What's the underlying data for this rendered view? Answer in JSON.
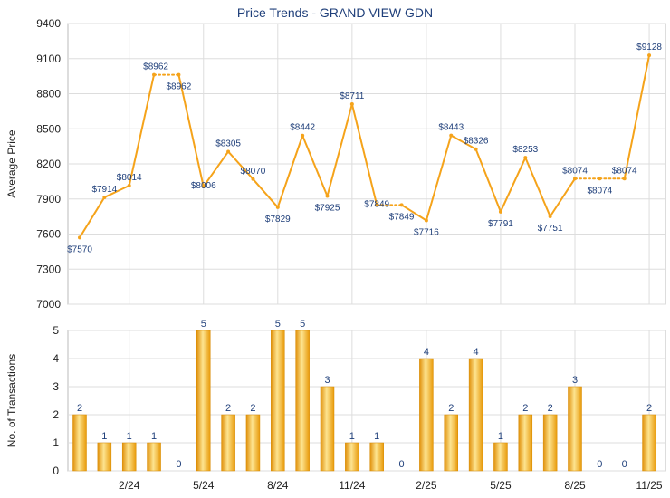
{
  "title": "Price Trends - GRAND VIEW GDN",
  "colors": {
    "line": "#f5a31a",
    "bar_dark": "#e89a0a",
    "bar_light": "#fde08a",
    "grid": "#dddddd",
    "title": "#1f3f7a",
    "label": "#1f3f7a"
  },
  "chart_data": [
    {
      "type": "line",
      "ylabel": "Average Price",
      "ylim": [
        7000,
        9400
      ],
      "yticks": [
        7000,
        7300,
        7600,
        7900,
        8200,
        8500,
        8800,
        9100,
        9400
      ],
      "x": [
        0,
        1,
        2,
        3,
        4,
        5,
        6,
        7,
        8,
        9,
        10,
        11,
        12,
        13,
        14,
        15,
        16,
        17,
        18,
        19,
        20,
        21,
        22,
        23
      ],
      "values": [
        7570,
        7914,
        8014,
        8962,
        8962,
        8006,
        8305,
        8070,
        7829,
        8442,
        7925,
        8711,
        7849,
        7849,
        7716,
        8443,
        8326,
        7791,
        8253,
        7751,
        8074,
        8074,
        8074,
        9128
      ],
      "labels": [
        "$7570",
        "$7914",
        "$8014",
        "$8962",
        "$8962",
        "$8006",
        "$8305",
        "$8070",
        "$7829",
        "$8442",
        "$7925",
        "$8711",
        "$7849",
        "$7849",
        "$7716",
        "$8443",
        "$8326",
        "$7791",
        "$8253",
        "$7751",
        "$8074",
        "$8074",
        "$8074",
        "$9128"
      ],
      "dotted_segments": [
        [
          3,
          4
        ],
        [
          12,
          13
        ],
        [
          20,
          21
        ],
        [
          21,
          22
        ]
      ]
    },
    {
      "type": "bar",
      "ylabel": "No. of Transactions",
      "ylim": [
        0,
        5
      ],
      "yticks": [
        0,
        1,
        2,
        3,
        4,
        5
      ],
      "values": [
        2,
        1,
        1,
        1,
        0,
        5,
        2,
        2,
        5,
        5,
        3,
        1,
        1,
        0,
        4,
        2,
        4,
        1,
        2,
        2,
        3,
        0,
        0,
        2
      ]
    }
  ],
  "x_ticks": [
    {
      "index": 2,
      "label": "2/24"
    },
    {
      "index": 5,
      "label": "5/24"
    },
    {
      "index": 8,
      "label": "8/24"
    },
    {
      "index": 11,
      "label": "11/24"
    },
    {
      "index": 14,
      "label": "2/25"
    },
    {
      "index": 17,
      "label": "5/25"
    },
    {
      "index": 20,
      "label": "8/25"
    },
    {
      "index": 23,
      "label": "11/25"
    }
  ]
}
